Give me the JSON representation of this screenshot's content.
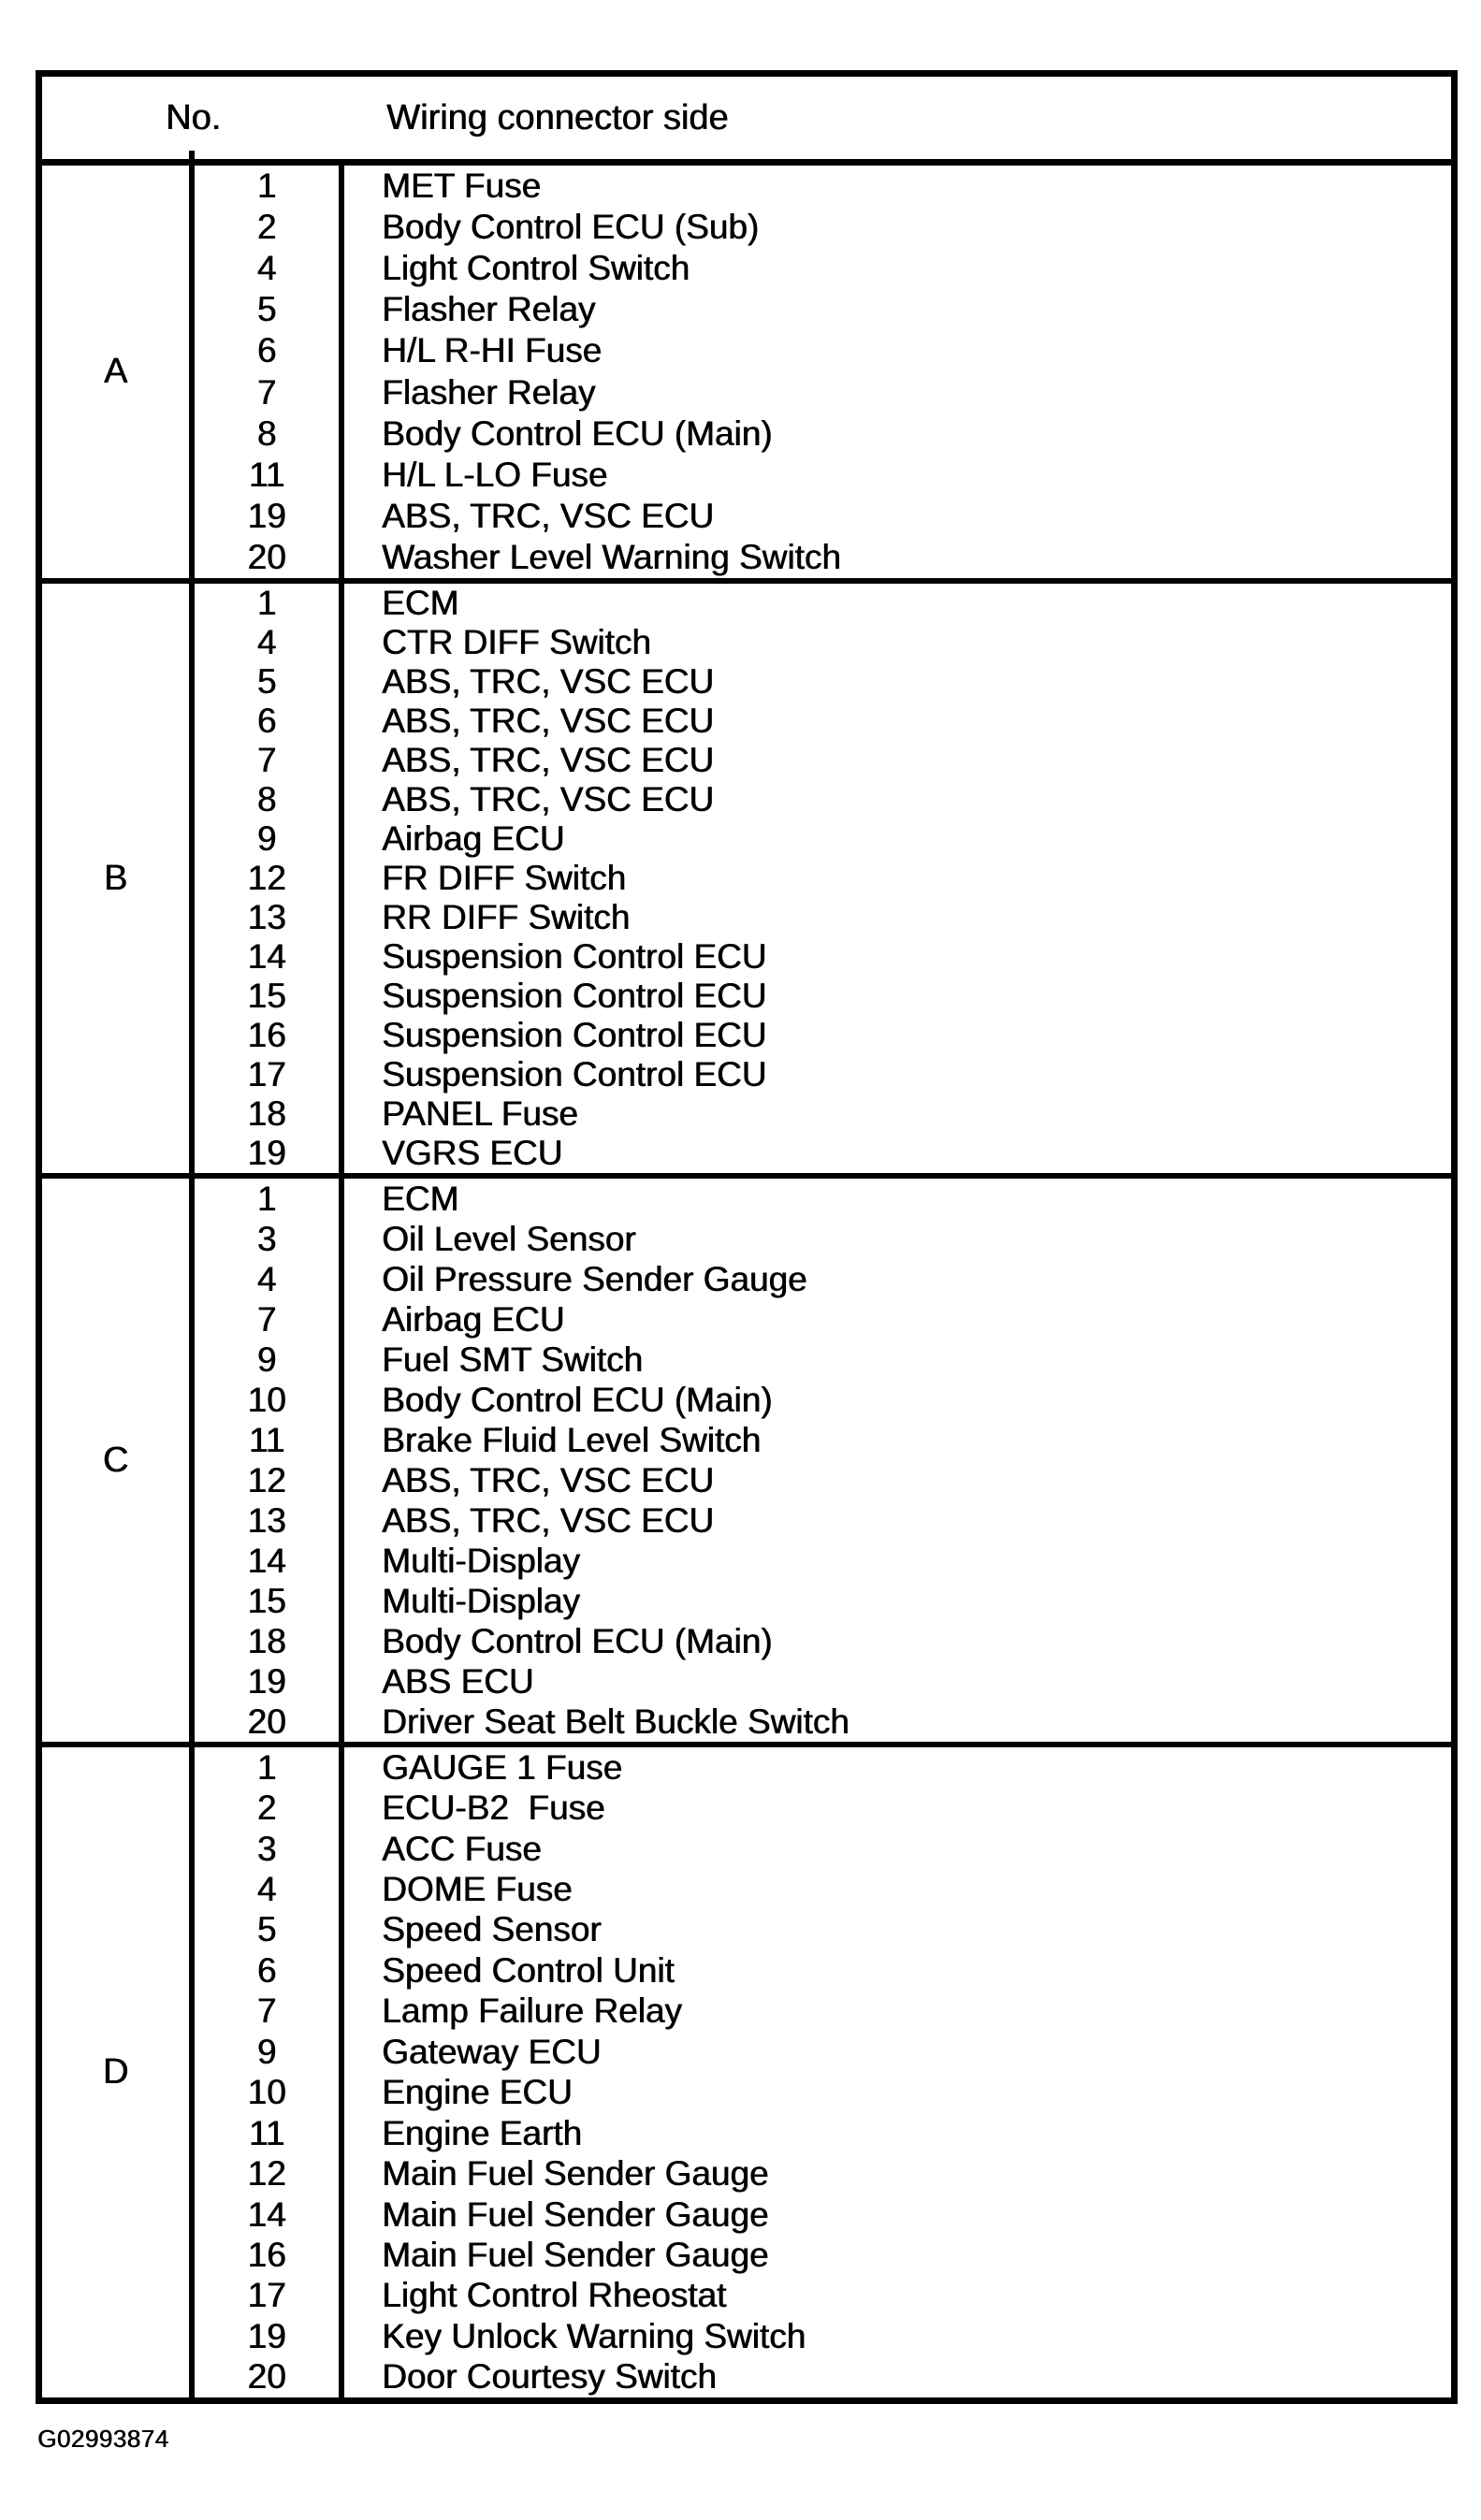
{
  "table": {
    "header": {
      "no": "No.",
      "connector": "Wiring connector side"
    },
    "sections": [
      {
        "letter": "A",
        "rows": [
          {
            "no": "1",
            "name": "MET Fuse"
          },
          {
            "no": "2",
            "name": "Body Control ECU (Sub)"
          },
          {
            "no": "4",
            "name": "Light Control Switch"
          },
          {
            "no": "5",
            "name": "Flasher Relay"
          },
          {
            "no": "6",
            "name": "H/L R-HI Fuse"
          },
          {
            "no": "7",
            "name": "Flasher Relay"
          },
          {
            "no": "8",
            "name": "Body Control ECU (Main)"
          },
          {
            "no": "11",
            "name": "H/L L-LO Fuse"
          },
          {
            "no": "19",
            "name": "ABS, TRC, VSC ECU"
          },
          {
            "no": "20",
            "name": "Washer Level Warning Switch"
          }
        ]
      },
      {
        "letter": "B",
        "rows": [
          {
            "no": "1",
            "name": "ECM"
          },
          {
            "no": "4",
            "name": "CTR DIFF Switch"
          },
          {
            "no": "5",
            "name": "ABS, TRC, VSC ECU"
          },
          {
            "no": "6",
            "name": "ABS, TRC, VSC ECU"
          },
          {
            "no": "7",
            "name": "ABS, TRC, VSC ECU"
          },
          {
            "no": "8",
            "name": "ABS, TRC, VSC ECU"
          },
          {
            "no": "9",
            "name": "Airbag ECU"
          },
          {
            "no": "12",
            "name": "FR DIFF Switch"
          },
          {
            "no": "13",
            "name": "RR DIFF Switch"
          },
          {
            "no": "14",
            "name": "Suspension Control ECU"
          },
          {
            "no": "15",
            "name": "Suspension Control ECU"
          },
          {
            "no": "16",
            "name": "Suspension Control ECU"
          },
          {
            "no": "17",
            "name": "Suspension Control ECU"
          },
          {
            "no": "18",
            "name": "PANEL Fuse"
          },
          {
            "no": "19",
            "name": "VGRS ECU"
          }
        ]
      },
      {
        "letter": "C",
        "rows": [
          {
            "no": "1",
            "name": "ECM"
          },
          {
            "no": "3",
            "name": "Oil Level Sensor"
          },
          {
            "no": "4",
            "name": "Oil Pressure Sender Gauge"
          },
          {
            "no": "7",
            "name": "Airbag ECU"
          },
          {
            "no": "9",
            "name": "Fuel SMT Switch"
          },
          {
            "no": "10",
            "name": "Body Control ECU (Main)"
          },
          {
            "no": "11",
            "name": "Brake Fluid Level Switch"
          },
          {
            "no": "12",
            "name": "ABS, TRC, VSC ECU"
          },
          {
            "no": "13",
            "name": "ABS, TRC, VSC ECU"
          },
          {
            "no": "14",
            "name": "Multi-Display"
          },
          {
            "no": "15",
            "name": "Multi-Display"
          },
          {
            "no": "18",
            "name": "Body Control ECU (Main)"
          },
          {
            "no": "19",
            "name": "ABS ECU"
          },
          {
            "no": "20",
            "name": "Driver Seat Belt Buckle Switch"
          }
        ]
      },
      {
        "letter": "D",
        "rows": [
          {
            "no": "1",
            "name": "GAUGE 1 Fuse"
          },
          {
            "no": "2",
            "name": "ECU-B2  Fuse"
          },
          {
            "no": "3",
            "name": "ACC Fuse"
          },
          {
            "no": "4",
            "name": "DOME Fuse"
          },
          {
            "no": "5",
            "name": "Speed Sensor"
          },
          {
            "no": "6",
            "name": "Speed Control Unit"
          },
          {
            "no": "7",
            "name": "Lamp Failure Relay"
          },
          {
            "no": "9",
            "name": "Gateway ECU"
          },
          {
            "no": "10",
            "name": "Engine ECU"
          },
          {
            "no": "11",
            "name": "Engine Earth"
          },
          {
            "no": "12",
            "name": "Main Fuel Sender Gauge"
          },
          {
            "no": "14",
            "name": "Main Fuel Sender Gauge"
          },
          {
            "no": "16",
            "name": "Main Fuel Sender Gauge"
          },
          {
            "no": "17",
            "name": "Light Control Rheostat"
          },
          {
            "no": "19",
            "name": "Key Unlock Warning Switch"
          },
          {
            "no": "20",
            "name": "Door Courtesy Switch"
          }
        ]
      }
    ]
  },
  "footer": {
    "figure_code": "G02993874"
  }
}
